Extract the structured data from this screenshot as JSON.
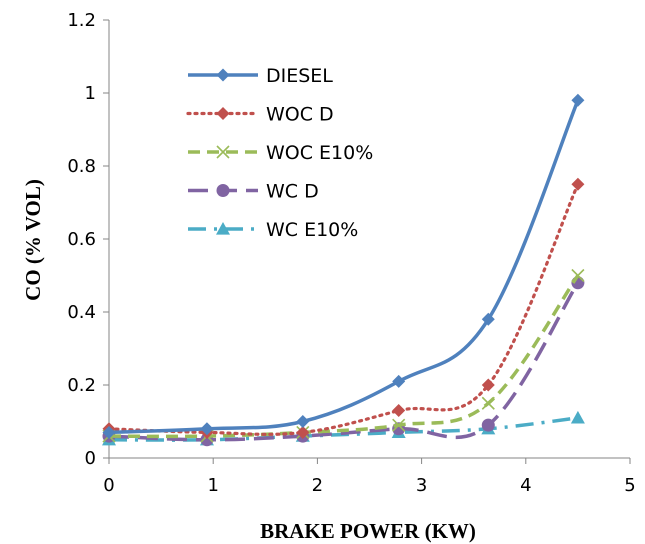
{
  "chart_data": {
    "type": "line",
    "title": "",
    "xlabel": "BRAKE POWER (KW)",
    "ylabel": "CO (% VOL)",
    "xlim": [
      0,
      5
    ],
    "ylim": [
      0,
      1.2
    ],
    "x_ticks": [
      "0",
      "1",
      "2",
      "3",
      "4",
      "5"
    ],
    "y_ticks": [
      "0",
      "0.2",
      "0.4",
      "0.6",
      "0.8",
      "1",
      "1.2"
    ],
    "grid": false,
    "legend_position": "top-left",
    "x": [
      0,
      0.94,
      1.86,
      2.78,
      3.64,
      4.5
    ],
    "series": [
      {
        "name": "DIESEL",
        "values": [
          0.07,
          0.08,
          0.1,
          0.21,
          0.38,
          0.98
        ],
        "color": "#4F81BD",
        "line_style": "solid",
        "marker": "diamond"
      },
      {
        "name": "WOC D",
        "values": [
          0.08,
          0.07,
          0.07,
          0.13,
          0.2,
          0.75
        ],
        "color": "#C0504D",
        "line_style": "dotted",
        "marker": "diamond"
      },
      {
        "name": "WOC E10%",
        "values": [
          0.06,
          0.06,
          0.07,
          0.09,
          0.15,
          0.5
        ],
        "color": "#9BBB59",
        "line_style": "dashed",
        "marker": "x"
      },
      {
        "name": "WC D",
        "values": [
          0.06,
          0.05,
          0.06,
          0.08,
          0.09,
          0.48
        ],
        "color": "#8064A2",
        "line_style": "longdash",
        "marker": "circle"
      },
      {
        "name": "WC E10%",
        "values": [
          0.05,
          0.05,
          0.06,
          0.07,
          0.08,
          0.11
        ],
        "color": "#4BACC6",
        "line_style": "dashdot",
        "marker": "triangle"
      }
    ]
  }
}
